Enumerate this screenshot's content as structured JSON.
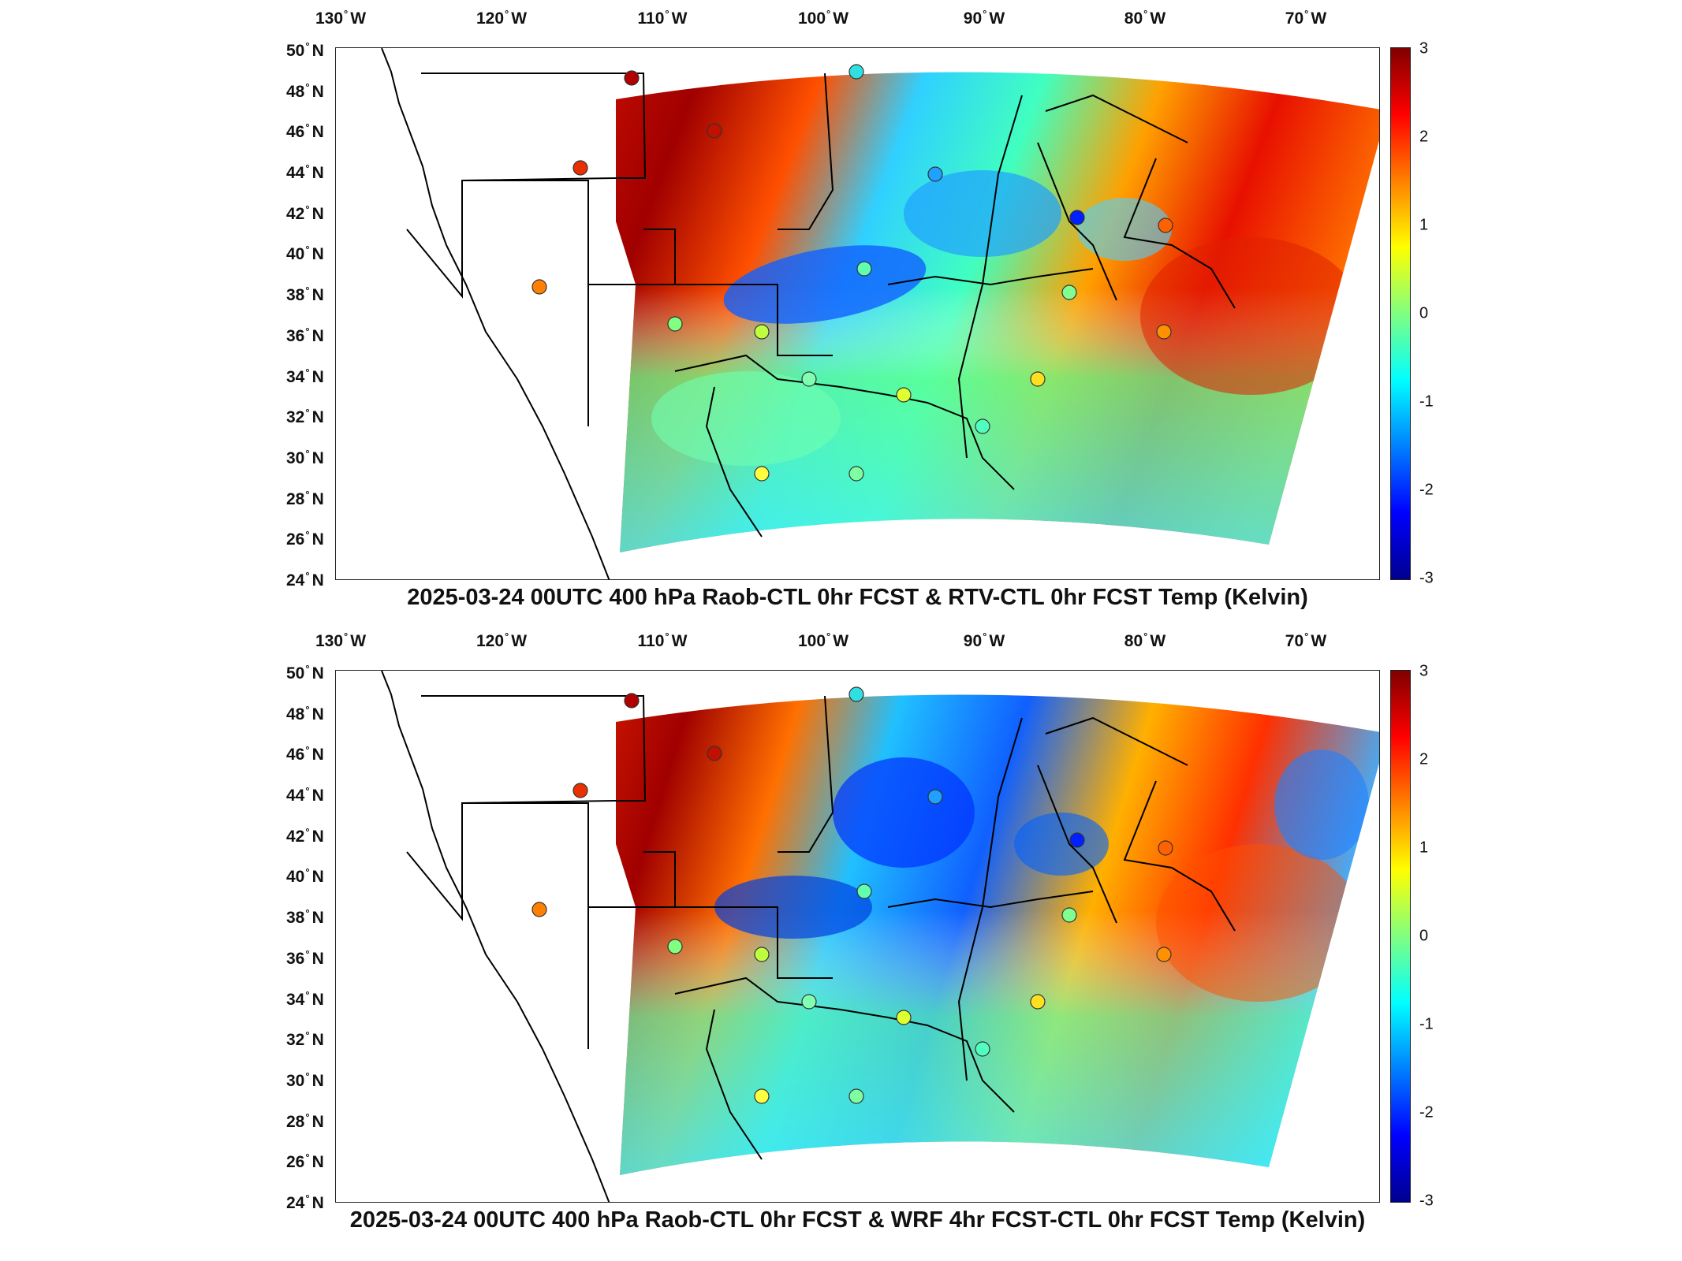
{
  "panels": [
    {
      "title": "2025-03-24 00UTC 400 hPa Raob-CTL 0hr FCST & RTV-CTL 0hr FCST Temp (Kelvin)"
    },
    {
      "title": "2025-03-24 00UTC 400 hPa Raob-CTL 0hr FCST & WRF 4hr FCST-CTL 0hr FCST Temp (Kelvin)"
    }
  ],
  "axes": {
    "lon_ticks": [
      {
        "deg": "130",
        "hemi": "W"
      },
      {
        "deg": "120",
        "hemi": "W"
      },
      {
        "deg": "110",
        "hemi": "W"
      },
      {
        "deg": "100",
        "hemi": "W"
      },
      {
        "deg": "90",
        "hemi": "W"
      },
      {
        "deg": "80",
        "hemi": "W"
      },
      {
        "deg": "70",
        "hemi": "W"
      }
    ],
    "lat_ticks": [
      {
        "deg": "50",
        "hemi": "N"
      },
      {
        "deg": "48",
        "hemi": "N"
      },
      {
        "deg": "46",
        "hemi": "N"
      },
      {
        "deg": "44",
        "hemi": "N"
      },
      {
        "deg": "42",
        "hemi": "N"
      },
      {
        "deg": "40",
        "hemi": "N"
      },
      {
        "deg": "38",
        "hemi": "N"
      },
      {
        "deg": "36",
        "hemi": "N"
      },
      {
        "deg": "34",
        "hemi": "N"
      },
      {
        "deg": "32",
        "hemi": "N"
      },
      {
        "deg": "30",
        "hemi": "N"
      },
      {
        "deg": "28",
        "hemi": "N"
      },
      {
        "deg": "26",
        "hemi": "N"
      },
      {
        "deg": "24",
        "hemi": "N"
      }
    ]
  },
  "colorbar": {
    "ticks": [
      "3",
      "2",
      "1",
      "0",
      "-1",
      "-2",
      "-3"
    ],
    "colors": [
      "#00008f",
      "#0000ff",
      "#0080ff",
      "#00ffff",
      "#80ff80",
      "#ffff00",
      "#ff8000",
      "#ff0000",
      "#800000"
    ]
  }
}
